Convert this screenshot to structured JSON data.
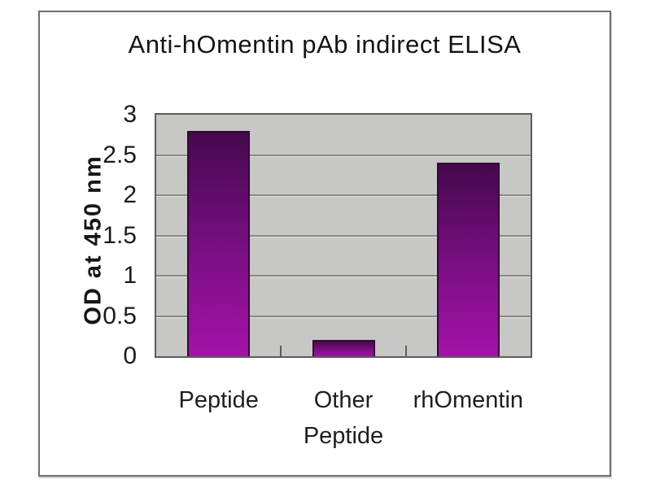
{
  "page": {
    "background": "#ffffff"
  },
  "chart_data": {
    "type": "bar",
    "title": "Anti-hOmentin pAb indirect ELISA",
    "xlabel": "",
    "ylabel": "OD at 450 nm",
    "categories": [
      "Peptide",
      "Other\nPeptide",
      "rhOmentin"
    ],
    "values": [
      2.8,
      0.2,
      2.4
    ],
    "ylim": [
      0,
      3
    ],
    "yticks": [
      0,
      0.5,
      1,
      1.5,
      2,
      2.5,
      3
    ],
    "grid": "horizontal",
    "legend_position": "none",
    "colors": {
      "plot_background": "#c7c7c5",
      "gridline": "#878787",
      "plot_border": "#5c5c5c",
      "frame_border": "#6f6f6f",
      "bar_gradient_top": "#45094d",
      "bar_gradient_bottom": "#a312a7",
      "bar_outline": "#350538",
      "text": "#1b1b1b"
    }
  }
}
